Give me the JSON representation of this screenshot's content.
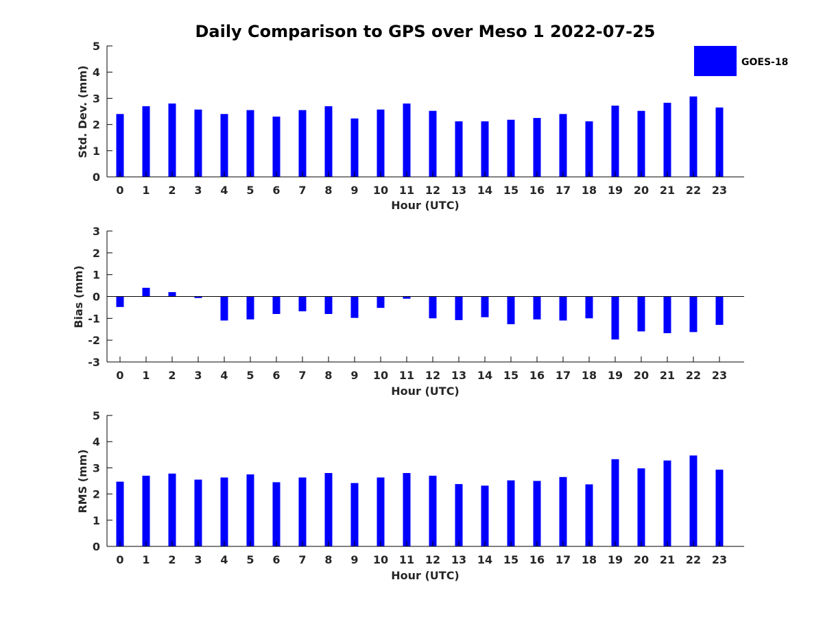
{
  "title": "Daily Comparison to GPS over Meso 1 2022-07-25",
  "bar_color": "#0000ff",
  "legend": {
    "label": "GOES-18",
    "color": "#0000ff"
  },
  "chart_data": [
    {
      "type": "bar",
      "name": "std-dev",
      "xlabel": "Hour (UTC)",
      "ylabel": "Std. Dev. (mm)",
      "ylim": [
        0,
        5
      ],
      "yticks": [
        "0",
        "1",
        "2",
        "3",
        "4",
        "5"
      ],
      "categories": [
        "0",
        "1",
        "2",
        "3",
        "4",
        "5",
        "6",
        "7",
        "8",
        "9",
        "10",
        "11",
        "12",
        "13",
        "14",
        "15",
        "16",
        "17",
        "18",
        "19",
        "20",
        "21",
        "22",
        "23"
      ],
      "series": [
        {
          "name": "GOES-18",
          "values": [
            2.4,
            2.7,
            2.8,
            2.57,
            2.4,
            2.55,
            2.3,
            2.55,
            2.7,
            2.23,
            2.57,
            2.8,
            2.52,
            2.12,
            2.12,
            2.18,
            2.25,
            2.4,
            2.12,
            2.72,
            2.52,
            2.83,
            3.07,
            2.65
          ]
        }
      ]
    },
    {
      "type": "bar",
      "name": "bias",
      "xlabel": "Hour (UTC)",
      "ylabel": "Bias (mm)",
      "ylim": [
        -3,
        3
      ],
      "yticks": [
        "-3",
        "-2",
        "-1",
        "0",
        "1",
        "2",
        "3"
      ],
      "categories": [
        "0",
        "1",
        "2",
        "3",
        "4",
        "5",
        "6",
        "7",
        "8",
        "9",
        "10",
        "11",
        "12",
        "13",
        "14",
        "15",
        "16",
        "17",
        "18",
        "19",
        "20",
        "21",
        "22",
        "23"
      ],
      "series": [
        {
          "name": "GOES-18",
          "values": [
            -0.48,
            0.4,
            0.2,
            -0.07,
            -1.1,
            -1.05,
            -0.8,
            -0.68,
            -0.8,
            -0.98,
            -0.52,
            -0.1,
            -1.0,
            -1.08,
            -0.95,
            -1.27,
            -1.05,
            -1.1,
            -1.0,
            -1.97,
            -1.6,
            -1.68,
            -1.63,
            -1.3
          ]
        }
      ]
    },
    {
      "type": "bar",
      "name": "rms",
      "xlabel": "Hour (UTC)",
      "ylabel": "RMS (mm)",
      "ylim": [
        0,
        5
      ],
      "yticks": [
        "0",
        "1",
        "2",
        "3",
        "4",
        "5"
      ],
      "categories": [
        "0",
        "1",
        "2",
        "3",
        "4",
        "5",
        "6",
        "7",
        "8",
        "9",
        "10",
        "11",
        "12",
        "13",
        "14",
        "15",
        "16",
        "17",
        "18",
        "19",
        "20",
        "21",
        "22",
        "23"
      ],
      "series": [
        {
          "name": "GOES-18",
          "values": [
            2.47,
            2.7,
            2.78,
            2.55,
            2.63,
            2.75,
            2.45,
            2.63,
            2.8,
            2.42,
            2.63,
            2.8,
            2.7,
            2.38,
            2.32,
            2.52,
            2.5,
            2.65,
            2.37,
            3.33,
            2.98,
            3.28,
            3.47,
            2.93
          ]
        }
      ]
    }
  ]
}
